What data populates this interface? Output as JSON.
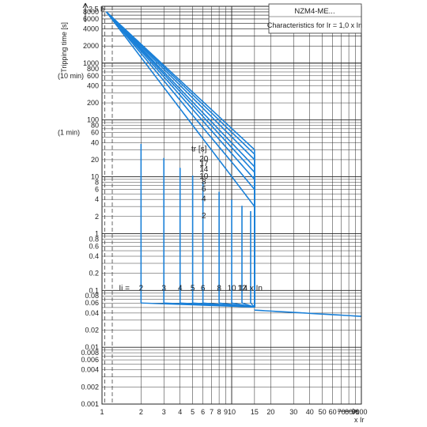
{
  "chart_data": {
    "type": "line",
    "title": "NZM4-ME...",
    "subtitle": "Characteristics for Ir = 1,0 x In",
    "ylabel": "Tripping time [s]",
    "xlabel": "x Ir",
    "x_scale": "log",
    "y_scale": "log",
    "xlim": [
      1,
      100
    ],
    "ylim": [
      0.001,
      10000
    ],
    "grid": true,
    "x_ticks": [
      "1",
      "2",
      "3",
      "4",
      "5",
      "6",
      "7",
      "8",
      "9",
      "10",
      "15",
      "20",
      "30",
      "40",
      "50",
      "60",
      "70",
      "80",
      "90",
      "100"
    ],
    "x_tick_values": [
      1,
      2,
      3,
      4,
      5,
      6,
      7,
      8,
      9,
      10,
      15,
      20,
      30,
      40,
      50,
      60,
      70,
      80,
      90,
      100
    ],
    "y_ticks": [
      "8000",
      "6000",
      "4000",
      "2000",
      "1000",
      "800",
      "600",
      "400",
      "200",
      "100",
      "80",
      "60",
      "40",
      "20",
      "10",
      "8",
      "6",
      "4",
      "2",
      "1",
      "0.8",
      "0.6",
      "0.4",
      "0.2",
      "0.1",
      "0.08",
      "0.06",
      "0.04",
      "0.02",
      "0.01",
      "0.008",
      "0.006",
      "0.004",
      "0.002",
      "0.001"
    ],
    "y_tick_values": [
      8000,
      6000,
      4000,
      2000,
      1000,
      800,
      600,
      400,
      200,
      100,
      80,
      60,
      40,
      20,
      10,
      8,
      6,
      4,
      2,
      1,
      0.8,
      0.6,
      0.4,
      0.2,
      0.1,
      0.08,
      0.06,
      0.04,
      0.02,
      0.01,
      0.008,
      0.006,
      0.004,
      0.002,
      0.001
    ],
    "y_side_labels": [
      {
        "text": "2.5 h",
        "value": 9000
      },
      {
        "text": "(10 min)",
        "value": 600
      },
      {
        "text": "(1 min)",
        "value": 60
      }
    ],
    "tr_header": "tr [s]",
    "tr_values": [
      20,
      17,
      14,
      10,
      8,
      6,
      4,
      2
    ],
    "tr_curve_end_t": [
      30,
      25,
      20,
      15,
      12,
      9,
      6,
      3
    ],
    "tr_curve_end_x": 15,
    "ii_label": "Ii =",
    "ii_values": [
      2,
      3,
      4,
      5,
      6,
      8,
      10,
      12,
      14
    ],
    "ii_tick_labels": [
      "2",
      "3",
      "4",
      "5",
      "6",
      "8",
      "10",
      "12",
      "14 x In"
    ],
    "ii_plateau_t": 0.06,
    "instantaneous": {
      "x_start": 15,
      "t_start": 0.045,
      "x_end": 100,
      "t_end": 0.035
    },
    "dashed_x": [
      1.05,
      1.2
    ],
    "series_color": "#1a80d8"
  }
}
